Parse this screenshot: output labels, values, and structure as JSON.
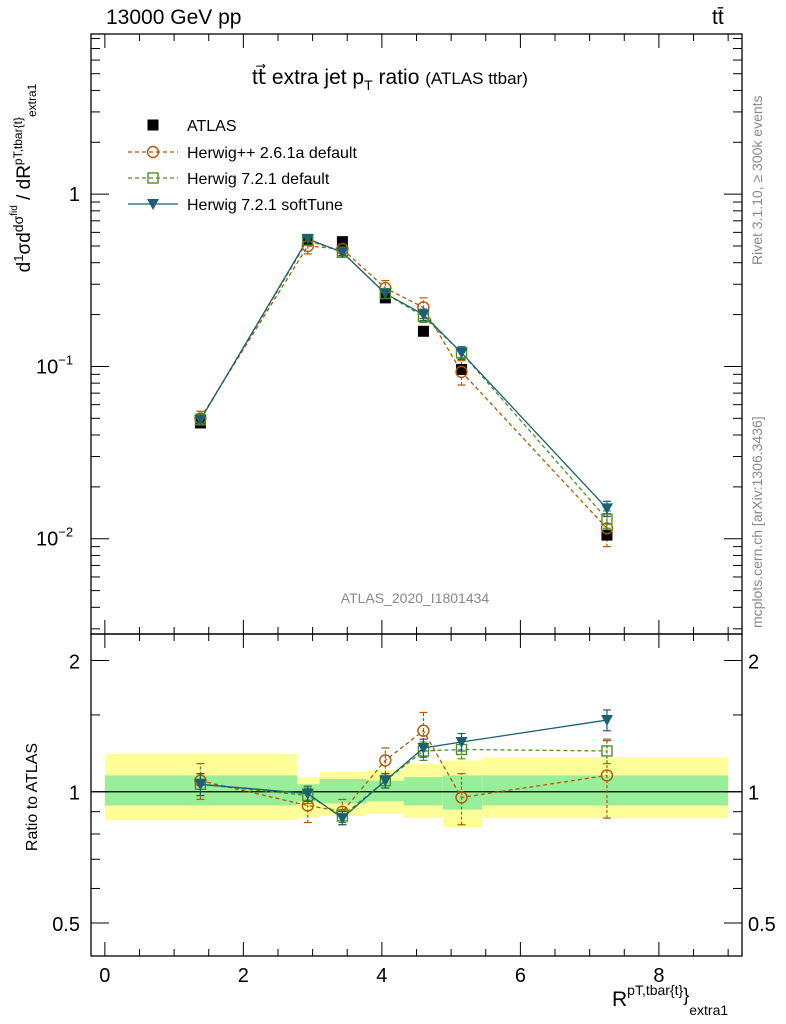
{
  "header": {
    "energy_label": "13000 GeV pp",
    "process_label": "tt̄"
  },
  "side_labels": {
    "rivet": "Rivet 3.1.10, ≥ 300k events",
    "mcplots": "mcplots.cern.ch [arXiv:1306.3436]"
  },
  "chart_data": {
    "type": "line",
    "title": "tt⃗ extra jet pT ratio",
    "title_suffix": "(ATLAS ttbar)",
    "analysis_id": "ATLAS_2020_I1801434",
    "ylabel_top": "1/σ dσ/dR (pT,tbar{t}, extra1)",
    "ylabel_bottom": "Ratio to ATLAS",
    "xlabel": "R^{pT,tbar{t}}_{extra1}",
    "xlim": [
      -0.2,
      9.2
    ],
    "ylim_top": [
      0.0028,
      8.5
    ],
    "ylim_bottom": [
      0.42,
      2.3
    ],
    "ylog_top": true,
    "ylog_bottom": true,
    "x_ticks": [
      "0",
      "2",
      "4",
      "6",
      "8"
    ],
    "y_ticks_top": [
      "10^-2",
      "10^-1",
      "1"
    ],
    "y_ticks_bottom": [
      "0.5",
      "1",
      "2"
    ],
    "legend": [
      {
        "name": "ATLAS",
        "color": "#000000",
        "marker": "filled-square",
        "dashed": false
      },
      {
        "name": "Herwig++ 2.6.1a default",
        "color": "#b35806",
        "marker": "open-circle",
        "dashed": true
      },
      {
        "name": "Herwig 7.2.1 default",
        "color": "#4d9221",
        "marker": "open-square",
        "dashed": true
      },
      {
        "name": "Herwig 7.2.1 softTune",
        "color": "#1b5e75",
        "marker": "filled-triangle-down",
        "dashed": false
      }
    ],
    "x": [
      1.38,
      2.93,
      3.43,
      4.05,
      4.6,
      5.15,
      7.25
    ],
    "data": [
      0.047,
      0.54,
      0.53,
      0.25,
      0.16,
      0.096,
      0.0105
    ],
    "series": [
      {
        "name": "Herwig++ 2.6.1a default",
        "values": [
          0.05,
          0.5,
          0.48,
          0.285,
          0.22,
          0.093,
          0.0115
        ],
        "errors": [
          0.005,
          0.05,
          0.04,
          0.03,
          0.03,
          0.015,
          0.0025
        ],
        "ratio": [
          1.06,
          0.93,
          0.9,
          1.18,
          1.38,
          0.97,
          1.09
        ],
        "ratio_err": [
          0.1,
          0.08,
          0.06,
          0.08,
          0.14,
          0.13,
          0.22
        ]
      },
      {
        "name": "Herwig 7.2.1 default",
        "values": [
          0.049,
          0.54,
          0.46,
          0.265,
          0.195,
          0.12,
          0.013
        ],
        "errors": [
          0.004,
          0.03,
          0.02,
          0.015,
          0.015,
          0.01,
          0.0015
        ],
        "ratio": [
          1.04,
          0.98,
          0.88,
          1.06,
          1.24,
          1.25,
          1.24
        ],
        "ratio_err": [
          0.06,
          0.04,
          0.03,
          0.04,
          0.06,
          0.06,
          0.08
        ]
      },
      {
        "name": "Herwig 7.2.1 softTune",
        "values": [
          0.049,
          0.55,
          0.46,
          0.265,
          0.2,
          0.12,
          0.015
        ],
        "errors": [
          0.004,
          0.03,
          0.02,
          0.015,
          0.015,
          0.01,
          0.0015
        ],
        "ratio": [
          1.04,
          0.99,
          0.87,
          1.06,
          1.26,
          1.3,
          1.46
        ],
        "ratio_err": [
          0.06,
          0.04,
          0.03,
          0.04,
          0.06,
          0.06,
          0.08
        ]
      }
    ],
    "uncertainty_bands": {
      "bin_edges": [
        0,
        2.78,
        3.1,
        3.78,
        4.32,
        4.88,
        5.45,
        9.0
      ],
      "stat_hi": [
        1.09,
        1.04,
        1.07,
        1.06,
        1.08,
        1.09,
        1.09
      ],
      "stat_lo": [
        0.93,
        0.95,
        0.94,
        0.95,
        0.93,
        0.91,
        0.93
      ],
      "total_hi": [
        1.22,
        1.08,
        1.11,
        1.12,
        1.16,
        1.18,
        1.2
      ],
      "total_lo": [
        0.86,
        0.87,
        0.88,
        0.89,
        0.87,
        0.83,
        0.87
      ]
    },
    "colors": {
      "stat_band": "#99ee99",
      "total_band": "#ffff99",
      "analysis_label": "#888888"
    },
    "grid": false,
    "legend_position": "top-left"
  }
}
